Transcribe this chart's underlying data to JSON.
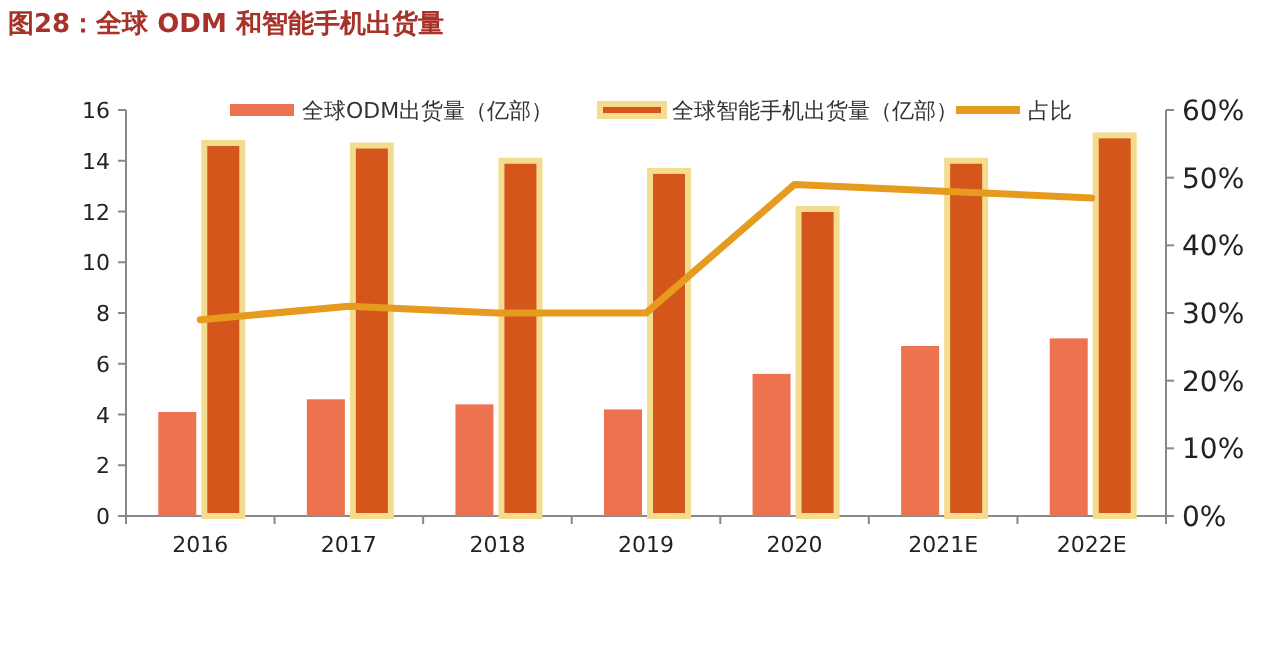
{
  "chart_data": {
    "type": "bar",
    "title": "图28：全球 ODM 和智能手机出货量",
    "categories": [
      "2016",
      "2017",
      "2018",
      "2019",
      "2020",
      "2021E",
      "2022E"
    ],
    "series": [
      {
        "name": "全球ODM出货量（亿部）",
        "color": "#ed7350",
        "values": [
          4.1,
          4.6,
          4.4,
          4.2,
          5.6,
          6.7,
          7.0
        ]
      },
      {
        "name": "全球智能手机出货量（亿部）",
        "color": "#d4561a",
        "values": [
          14.7,
          14.6,
          14.0,
          13.6,
          12.1,
          14.0,
          15.0
        ]
      },
      {
        "name": "占比",
        "type": "line",
        "axis": "y2",
        "color": "#e69a1e",
        "values": [
          29,
          31,
          30,
          30,
          49,
          48,
          47
        ]
      }
    ],
    "ylim": [
      0,
      16
    ],
    "yticks": [
      0,
      2,
      4,
      6,
      8,
      10,
      12,
      14,
      16
    ],
    "y2lim": [
      0,
      60
    ],
    "y2ticks": [
      {
        "value": 0,
        "label": "0%"
      },
      {
        "value": 10,
        "label": "10%"
      },
      {
        "value": 20,
        "label": "20%"
      },
      {
        "value": 30,
        "label": "30%"
      },
      {
        "value": 40,
        "label": "40%"
      },
      {
        "value": 50,
        "label": "50%"
      },
      {
        "value": 60,
        "label": "60%"
      }
    ],
    "legend": "top",
    "grid": false
  }
}
